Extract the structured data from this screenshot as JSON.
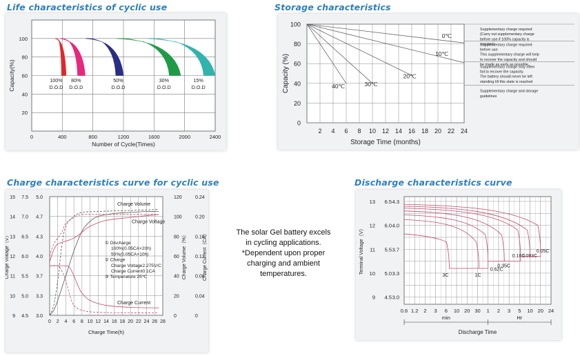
{
  "titles": {
    "life": "Life characteristics of cyclic use",
    "storage": "Storage characteristics",
    "charge": "Charge characteristics curve for cyclic use",
    "discharge": "Discharge characteristics curve"
  },
  "note": [
    "The solar Gel battery excels",
    "in cycling applications.",
    "*Dependent upon proper",
    "charging and ambient",
    "temperatures."
  ],
  "chart_data": [
    {
      "type": "area",
      "title": "Life characteristics of cyclic use",
      "xlabel": "Number of Cycle(Times)",
      "ylabel": "Capacity(%)",
      "xlim": [
        0,
        2400
      ],
      "ylim": [
        0,
        120
      ],
      "x_ticks": [
        0,
        400,
        800,
        1200,
        1600,
        2000,
        2400
      ],
      "y_ticks": [
        20,
        40,
        60,
        80,
        100
      ],
      "grid": true,
      "series": [
        {
          "name": "100% D.O.D",
          "color": "#e0262b",
          "x0": 300,
          "x_peak": 340,
          "x_end_outer": 450,
          "x_end_inner": 390,
          "label": [
            "100%",
            "D.O.D"
          ]
        },
        {
          "name": "80% D.O.D",
          "color": "#e8287c",
          "x0": 370,
          "x_peak": 420,
          "x_end_outer": 700,
          "x_end_inner": 600,
          "label": [
            "80%",
            "D.O.D"
          ]
        },
        {
          "name": "50% D.O.D",
          "color": "#2a2d86",
          "x0": 700,
          "x_peak": 800,
          "x_end_outer": 1200,
          "x_end_inner": 1100,
          "label": [
            "50%",
            "D.O.D"
          ]
        },
        {
          "name": "30% D.O.D",
          "color": "#1f9b48",
          "x0": 1100,
          "x_peak": 1250,
          "x_end_outer": 1950,
          "x_end_inner": 1800,
          "label": [
            "30%",
            "D.O.D"
          ]
        },
        {
          "name": "15% D.O.D",
          "color": "#33b3ad",
          "x0": 1500,
          "x_peak": 1650,
          "x_end_outer": 2400,
          "x_end_inner": 2250,
          "label": [
            "15%",
            "D.O.D"
          ]
        }
      ]
    },
    {
      "type": "line",
      "title": "Storage characteristics",
      "xlabel": "Storage Time (months)",
      "ylabel": "Capacity  (%)",
      "xlim": [
        0,
        24
      ],
      "ylim": [
        0,
        100
      ],
      "x_ticks": [
        2,
        4,
        6,
        8,
        10,
        12,
        14,
        16,
        18,
        20,
        22,
        24
      ],
      "y_ticks": [
        0,
        20,
        40,
        60,
        80,
        100
      ],
      "grid": true,
      "series": [
        {
          "name": "0℃",
          "x": [
            0,
            24
          ],
          "y": [
            100,
            81
          ]
        },
        {
          "name": "10℃",
          "x": [
            0,
            24
          ],
          "y": [
            100,
            61
          ]
        },
        {
          "name": "20℃",
          "x": [
            0,
            16
          ],
          "y": [
            100,
            48
          ]
        },
        {
          "name": "30℃",
          "x": [
            0,
            10
          ],
          "y": [
            100,
            40
          ]
        },
        {
          "name": "40℃",
          "x": [
            0,
            6
          ],
          "y": [
            100,
            40
          ]
        }
      ],
      "bands": [
        {
          "text": [
            "Supplementary charge required",
            "(Carry out supplementary charge",
            "before use if 100% capacity is",
            "requires)"
          ]
        },
        {
          "text": [
            "Supplementary charge required",
            "before use.",
            "This supplementary charge will help",
            "to recover the capacity and should",
            "be made  as early as possible."
          ]
        },
        {
          "text": [
            "Supplementary charge may often",
            "fail to recover the capacity.",
            "The battery should never be left",
            "standing till this state is reached"
          ]
        },
        {
          "text": [
            "Supplementary charge and storage",
            "guidelines"
          ]
        }
      ]
    },
    {
      "type": "line",
      "title": "Charge characteristics curve for cyclic use",
      "xlabel": "Charge Time(h)",
      "ylabel": "Charge Voltage（V）",
      "xlim": [
        0,
        28
      ],
      "x_ticks": [
        0,
        2,
        4,
        6,
        8,
        10,
        12,
        14,
        16,
        18,
        20,
        22,
        24,
        26,
        28
      ],
      "axes": {
        "voltage_15": [
          9,
          10,
          11,
          12,
          13,
          14,
          15
        ],
        "voltage_75": [
          4.5,
          5.0,
          5.5,
          6.0,
          6.5,
          7.0,
          7.5
        ],
        "voltage_50": [
          3.0,
          3.3,
          3.7,
          4.0,
          4.3,
          4.7,
          5.0
        ],
        "volume": [
          0,
          20,
          40,
          60,
          80,
          100,
          120
        ],
        "current": [
          0,
          0.04,
          0.08,
          0.12,
          0.16,
          0.2,
          0.24
        ]
      },
      "right_labels": [
        "Charge Volume（%）",
        "Charge Current（CA）"
      ],
      "series": [
        {
          "name": "Charge Volume",
          "style": "solid",
          "x": [
            0,
            1,
            2,
            4,
            6,
            8,
            10,
            12,
            16,
            20,
            24,
            27
          ],
          "y_volume": [
            0,
            5,
            15,
            40,
            65,
            85,
            95,
            100,
            103,
            104,
            105,
            105
          ]
        },
        {
          "name": "Charge Volume 50%",
          "style": "dashed",
          "x": [
            0,
            1,
            2,
            3,
            4,
            6,
            8,
            12,
            20,
            27
          ],
          "y_volume": [
            0,
            10,
            35,
            70,
            90,
            100,
            104,
            105,
            106,
            107
          ]
        },
        {
          "name": "Charge Voltage",
          "style": "solid",
          "x": [
            0,
            1,
            2,
            4,
            6,
            8,
            10,
            14,
            20,
            27
          ],
          "y_v50": [
            3.9,
            4.1,
            4.2,
            4.25,
            4.3,
            4.4,
            4.5,
            4.6,
            4.65,
            4.7
          ]
        },
        {
          "name": "Charge Voltage 50%",
          "style": "dashed",
          "x": [
            0,
            1,
            2,
            3,
            4,
            6,
            8,
            12,
            20,
            27
          ],
          "y_v50": [
            4.0,
            4.2,
            4.3,
            4.4,
            4.55,
            4.65,
            4.7,
            4.7,
            4.7,
            4.7
          ]
        },
        {
          "name": "Charge Current",
          "style": "solid",
          "x": [
            0,
            4,
            5,
            6,
            7,
            8,
            10,
            14,
            20,
            27
          ],
          "y_current": [
            0.1,
            0.1,
            0.096,
            0.08,
            0.06,
            0.045,
            0.03,
            0.02,
            0.016,
            0.015
          ]
        },
        {
          "name": "Charge Current 50%",
          "style": "dashed",
          "x": [
            0,
            2,
            3,
            4,
            5,
            6,
            8,
            12,
            20,
            27
          ],
          "y_current": [
            0.1,
            0.1,
            0.09,
            0.07,
            0.04,
            0.02,
            0.01,
            0.006,
            0.005,
            0.005
          ]
        }
      ],
      "labels": [
        "Charge Volume",
        "Charge Voltage",
        "Charge Current"
      ],
      "legend": [
        "① Discharge",
        "100%(0.05CA×20h)",
        "50%(0.05CA×10h)",
        "② Charge",
        "Charge Voltage2.275V/C",
        "Charge Current0.1CA",
        "③ Temperature 25℃"
      ]
    },
    {
      "type": "line",
      "title": "Discharge characteristics curve",
      "xlabel": "Discharge Time",
      "ylabel": "Terminal Voltage（V）",
      "x_ticks": [
        "0.6",
        "1.2",
        "2",
        "3",
        "6",
        "10",
        "20",
        "30",
        "1",
        "2",
        "3",
        "5",
        "10",
        "20",
        "24"
      ],
      "x_groups": [
        "min",
        "Hr"
      ],
      "y_ticks_12": [
        9,
        10,
        11,
        12,
        13
      ],
      "y_ticks_6": [
        4.5,
        5.0,
        5.5,
        6.0,
        6.5
      ],
      "y_ticks_4": [
        3.0,
        3.3,
        3.7,
        4.0,
        4.3
      ],
      "series": [
        {
          "name": "3C",
          "end_minutes": 7,
          "end_v": 5.1
        },
        {
          "name": "1C",
          "end_minutes": 33,
          "end_v": 5.1
        },
        {
          "name": "0.62C",
          "end_minutes": 60,
          "end_v": 5.25
        },
        {
          "name": "0.35C",
          "end_minutes": 150,
          "end_v": 5.25
        },
        {
          "name": "0.16C",
          "end_minutes": 320,
          "end_v": 5.35
        },
        {
          "name": "0.093C",
          "end_minutes": 600,
          "end_v": 5.35
        },
        {
          "name": "0.05C",
          "end_minutes": 1200,
          "end_v": 5.45
        }
      ]
    }
  ]
}
